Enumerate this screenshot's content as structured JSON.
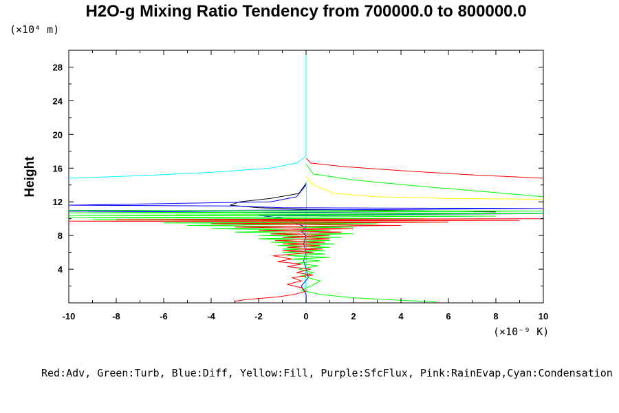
{
  "chart_data": {
    "type": "line",
    "title": "H2O-g Mixing Ratio Tendency from 700000.0 to 800000.0",
    "y_scale_label": "(×10⁴ m)",
    "x_scale_label": "(×10⁻⁹ K)",
    "ylabel": "Height",
    "legend_text": "Red:Adv, Green:Turb, Blue:Diff, Yellow:Fill, Purple:SfcFlux, Pink:RainEvap,Cyan:Condensation",
    "xlim": [
      -10,
      10
    ],
    "ylim": [
      0,
      30
    ],
    "x_ticks": [
      -10,
      -8,
      -6,
      -4,
      -2,
      0,
      2,
      4,
      6,
      8,
      10
    ],
    "x_tick_labels": [
      "-10",
      "-8",
      "-6",
      "-4",
      "-2",
      "0",
      "2",
      "4",
      "6",
      "8",
      "10"
    ],
    "y_ticks": [
      4,
      8,
      12,
      16,
      20,
      24,
      28
    ],
    "y_tick_labels": [
      "4",
      "8",
      "12",
      "16",
      "20",
      "24",
      "28"
    ],
    "series": [
      {
        "color": "#00ffff",
        "points": [
          [
            0,
            30
          ],
          [
            0,
            17.5
          ],
          [
            -0.1,
            17.2
          ],
          [
            -0.4,
            16.6
          ],
          [
            -1.5,
            16.0
          ],
          [
            -4,
            15.5
          ],
          [
            -7,
            15.1
          ],
          [
            -10,
            14.8
          ]
        ],
        "points2": [
          [
            0,
            14.5
          ],
          [
            0.02,
            12
          ],
          [
            -0.02,
            9
          ],
          [
            0.02,
            6
          ],
          [
            -0.02,
            3
          ],
          [
            0.02,
            0
          ]
        ]
      },
      {
        "color": "#ff0000",
        "points": [
          [
            0,
            17.2
          ],
          [
            0.2,
            16.6
          ],
          [
            1.5,
            16.2
          ],
          [
            4,
            15.7
          ],
          [
            7,
            15.2
          ],
          [
            10,
            14.8
          ]
        ]
      },
      {
        "color": "#00ff00",
        "points": [
          [
            0,
            16.5
          ],
          [
            0.3,
            15.3
          ],
          [
            2,
            14.6
          ],
          [
            5,
            13.8
          ],
          [
            8,
            13.1
          ],
          [
            10,
            12.6
          ]
        ]
      },
      {
        "color": "#ffff00",
        "points": [
          [
            0,
            15.0
          ],
          [
            0.3,
            14.0
          ],
          [
            1.2,
            13.0
          ],
          [
            3,
            12.6
          ],
          [
            6,
            12.4
          ],
          [
            10,
            12.3
          ]
        ]
      },
      {
        "color": "#000000",
        "points": [
          [
            0,
            14.2
          ],
          [
            -0.3,
            13.0
          ],
          [
            -1.5,
            12.4
          ],
          [
            -2.8,
            12.0
          ],
          [
            -3.2,
            11.6
          ],
          [
            -2,
            11.3
          ],
          [
            0,
            11.1
          ],
          [
            3,
            11.0
          ],
          [
            6,
            10.9
          ],
          [
            8,
            10.8
          ]
        ]
      },
      {
        "color": "#0000ff",
        "points": [
          [
            0,
            14.0
          ],
          [
            -0.4,
            12.6
          ],
          [
            -1.5,
            12.0
          ],
          [
            -10,
            11.6
          ],
          [
            -3,
            11.5
          ],
          [
            -1,
            11.3
          ],
          [
            10,
            11.2
          ],
          [
            4,
            11.1
          ],
          [
            -10,
            10.9
          ],
          [
            2,
            10.7
          ],
          [
            10,
            10.6
          ],
          [
            -2,
            10.4
          ],
          [
            -0.8,
            10.0
          ],
          [
            -0.5,
            9.5
          ],
          [
            0,
            9.0
          ],
          [
            -0.2,
            8.5
          ],
          [
            0,
            8.0
          ],
          [
            -0.1,
            7.0
          ],
          [
            0,
            6.0
          ],
          [
            -0.1,
            5.0
          ],
          [
            0,
            4.0
          ],
          [
            0.1,
            3.0
          ],
          [
            -0.2,
            2.0
          ],
          [
            0,
            1.0
          ],
          [
            0,
            0.1
          ]
        ]
      },
      {
        "color": "#00ff00",
        "points": [
          [
            -10,
            11.0
          ],
          [
            10,
            10.9
          ],
          [
            -10,
            10.7
          ],
          [
            10,
            10.6
          ],
          [
            -10,
            10.4
          ],
          [
            8,
            10.3
          ],
          [
            -10,
            10.1
          ],
          [
            5,
            10.0
          ],
          [
            -9,
            9.9
          ],
          [
            4,
            9.8
          ],
          [
            -8,
            9.7
          ],
          [
            6,
            9.6
          ],
          [
            -6,
            9.5
          ],
          [
            3,
            9.4
          ],
          [
            -5,
            9.2
          ],
          [
            2,
            9.0
          ],
          [
            -4,
            8.8
          ],
          [
            1,
            8.6
          ],
          [
            -3,
            8.4
          ],
          [
            2,
            8.2
          ],
          [
            -2,
            8.0
          ],
          [
            1.5,
            7.8
          ],
          [
            -2,
            7.6
          ],
          [
            1,
            7.4
          ],
          [
            -1.5,
            7.2
          ],
          [
            1.2,
            7.0
          ],
          [
            -1.2,
            6.8
          ],
          [
            1,
            6.6
          ],
          [
            -1,
            6.4
          ],
          [
            0.8,
            6.2
          ],
          [
            -1,
            6.0
          ],
          [
            0.8,
            5.8
          ],
          [
            -0.8,
            5.6
          ],
          [
            1,
            5.4
          ],
          [
            -0.6,
            5.2
          ],
          [
            0.6,
            5.0
          ],
          [
            -0.4,
            4.7
          ],
          [
            0.5,
            4.4
          ],
          [
            -0.3,
            4.0
          ],
          [
            0.3,
            3.6
          ],
          [
            -0.2,
            3.2
          ],
          [
            0.6,
            2.6
          ],
          [
            0.2,
            2.0
          ],
          [
            -0.2,
            1.5
          ],
          [
            0.6,
            1.0
          ],
          [
            2,
            0.6
          ],
          [
            4,
            0.3
          ],
          [
            5.5,
            0.1
          ]
        ]
      },
      {
        "color": "#ff0000",
        "points": [
          [
            10,
            10.0
          ],
          [
            -8,
            9.9
          ],
          [
            9,
            9.8
          ],
          [
            -10,
            9.7
          ],
          [
            6,
            9.6
          ],
          [
            -4,
            9.4
          ],
          [
            4,
            9.2
          ],
          [
            -3,
            9.0
          ],
          [
            2,
            8.8
          ],
          [
            -2,
            8.6
          ],
          [
            1.5,
            8.4
          ],
          [
            -1.5,
            8.2
          ],
          [
            1,
            8.0
          ],
          [
            -1,
            7.8
          ],
          [
            1,
            7.6
          ],
          [
            -1.3,
            7.4
          ],
          [
            0.8,
            7.2
          ],
          [
            -1,
            7.0
          ],
          [
            0.6,
            6.8
          ],
          [
            -0.8,
            6.6
          ],
          [
            0.7,
            6.4
          ],
          [
            -1,
            6.2
          ],
          [
            0.3,
            6.0
          ],
          [
            -1.4,
            5.6
          ],
          [
            -0.6,
            5.2
          ],
          [
            -1.2,
            4.9
          ],
          [
            -0.2,
            4.6
          ],
          [
            -0.8,
            4.3
          ],
          [
            0.2,
            4.0
          ],
          [
            -0.4,
            3.6
          ],
          [
            0.3,
            3.3
          ],
          [
            -0.6,
            3.0
          ],
          [
            -0.2,
            2.6
          ],
          [
            -0.8,
            2.2
          ],
          [
            -0.2,
            1.8
          ],
          [
            0,
            1.4
          ],
          [
            -0.5,
            1.0
          ],
          [
            -1.2,
            0.7
          ],
          [
            -2.5,
            0.4
          ],
          [
            -3,
            0.2
          ]
        ]
      }
    ]
  }
}
